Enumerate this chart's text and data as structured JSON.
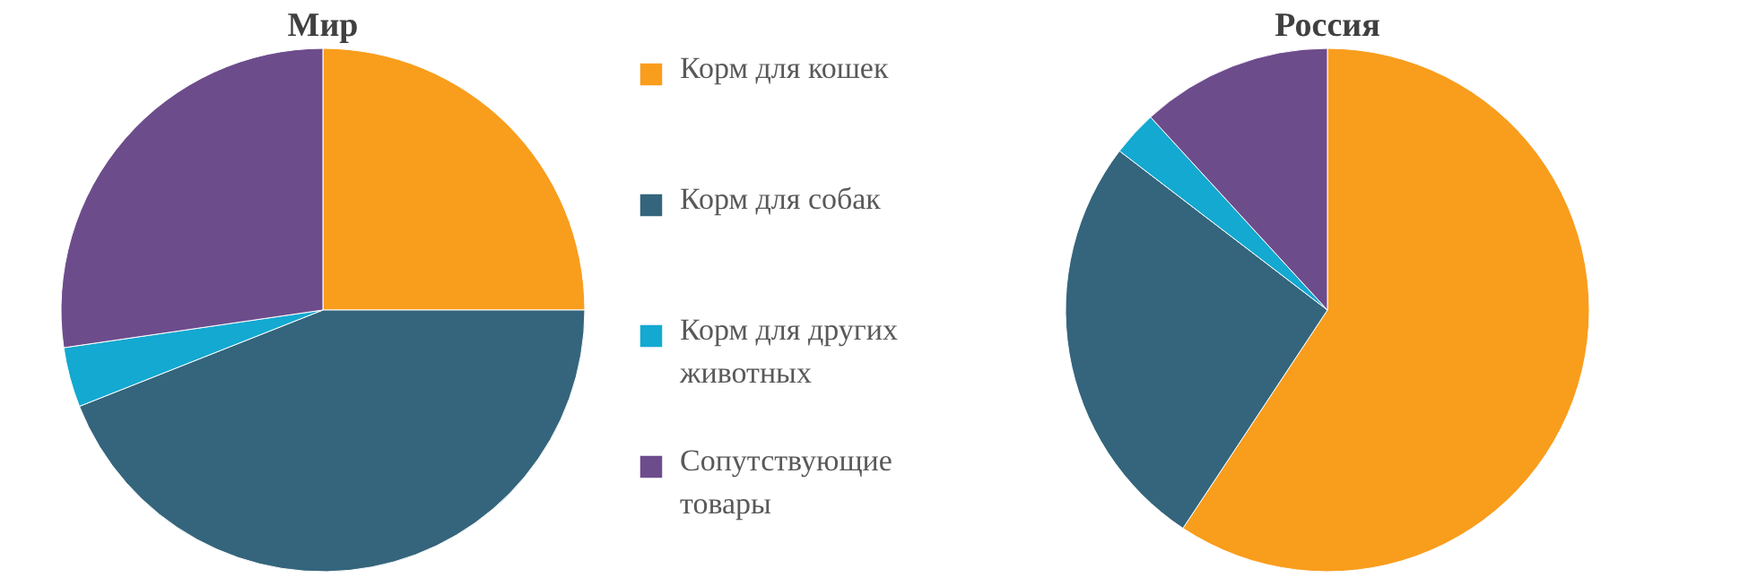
{
  "chart_data": [
    {
      "type": "pie",
      "title": "Мир",
      "categories": [
        "Корм для кошек",
        "Корм для собак",
        "Корм для других животных",
        "Сопутствующие товары"
      ],
      "values": [
        25,
        44,
        3.7,
        27.3
      ],
      "colors": [
        "#f99d1c",
        "#34657c",
        "#13a9d1",
        "#6d4c8c"
      ],
      "legend": "right"
    },
    {
      "type": "pie",
      "title": "Россия",
      "categories": [
        null,
        null,
        null,
        null
      ],
      "values": [
        59.3,
        26.1,
        2.8,
        11.8
      ],
      "colors": [
        "#f99d1c",
        "#34657c",
        "#13a9d1",
        "#6d4c8c"
      ]
    }
  ]
}
